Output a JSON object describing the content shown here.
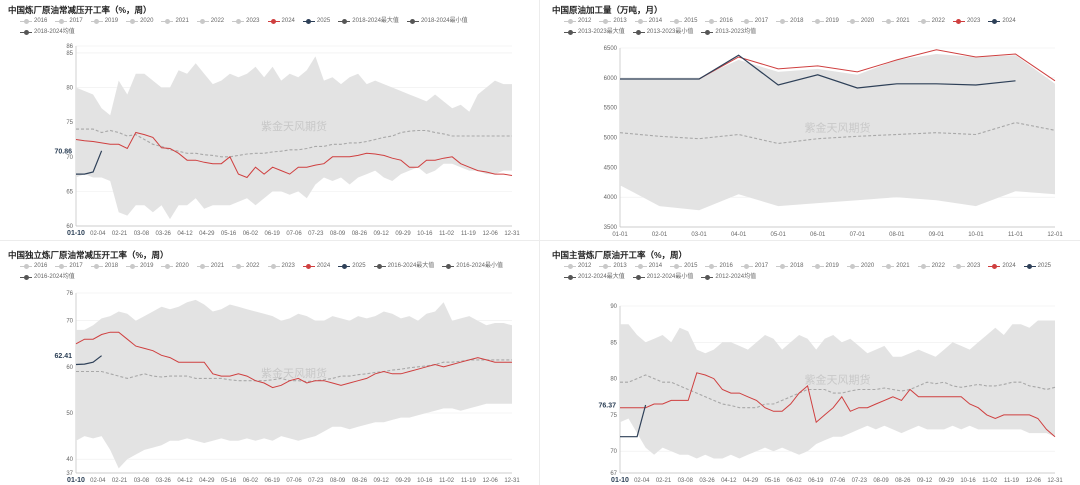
{
  "watermark": "紫金天风期货",
  "colors": {
    "band": "#e3e3e3",
    "avg": "#a8a8a8",
    "red": "#cf3f3f",
    "navy": "#2e4058",
    "gridline": "#eeeeee",
    "legend_gray": "#c9c9c9",
    "legend_dark": "#565656"
  },
  "chart_data": [
    {
      "id": "p1",
      "type": "line",
      "title": "中国炼厂原油常减压开工率（%，周）",
      "legend": [
        {
          "label": "2016",
          "color": "#c9c9c9"
        },
        {
          "label": "2017",
          "color": "#c9c9c9"
        },
        {
          "label": "2019",
          "color": "#c9c9c9"
        },
        {
          "label": "2020",
          "color": "#c9c9c9"
        },
        {
          "label": "2021",
          "color": "#c9c9c9"
        },
        {
          "label": "2022",
          "color": "#c9c9c9"
        },
        {
          "label": "2023",
          "color": "#c9c9c9"
        },
        {
          "label": "2024",
          "color": "#cf3f3f"
        },
        {
          "label": "2025",
          "color": "#2e4058"
        },
        {
          "label": "2018-2024最大值",
          "color": "#565656"
        },
        {
          "label": "2018-2024最小值",
          "color": "#565656"
        },
        {
          "label": "2018-2024均值",
          "color": "#565656"
        }
      ],
      "yticks": [
        "60",
        "65",
        "70",
        "75",
        "80",
        "85",
        "86"
      ],
      "ylim": [
        60,
        86
      ],
      "xticks": [
        "01-10",
        "02-04",
        "02-21",
        "03-08",
        "03-26",
        "04-12",
        "04-29",
        "05-16",
        "06-02",
        "06-19",
        "07-06",
        "07-23",
        "08-09",
        "08-26",
        "09-12",
        "09-29",
        "10-16",
        "11-02",
        "11-19",
        "12-06",
        "12-31"
      ],
      "value_label": "70.86",
      "value_label_y": 70.86,
      "max_series": [
        80,
        79.5,
        79,
        77,
        76,
        81,
        79,
        82,
        82,
        81,
        80,
        80,
        82.5,
        82,
        83.5,
        82,
        80.5,
        81,
        82,
        81.5,
        82,
        83,
        81.5,
        83,
        81,
        82,
        81.5,
        82.5,
        84.5,
        81,
        81.5,
        80.5,
        81.5,
        82,
        80.5,
        81,
        80.5,
        80,
        79.5,
        79,
        78.5,
        78,
        79,
        78,
        77,
        77.5,
        76.5,
        79,
        80,
        81,
        80.5,
        80.5
      ],
      "min_series": [
        67,
        67.5,
        67,
        67,
        66.5,
        62,
        61.5,
        63,
        63,
        62,
        63,
        61,
        63,
        63,
        64,
        62.5,
        63,
        63,
        63,
        63.5,
        64,
        63,
        64,
        65,
        65,
        64.5,
        65,
        64,
        66,
        67,
        66.5,
        67,
        66,
        67,
        67.5,
        68,
        67,
        66.5,
        67.5,
        68,
        68.5,
        67.5,
        68,
        69,
        69,
        68.5,
        68,
        68,
        67.5,
        67.5,
        68,
        68
      ],
      "avg_series": [
        74,
        74,
        74,
        73.5,
        73.8,
        73.5,
        73,
        73.2,
        72.5,
        71.8,
        71.5,
        71,
        70.8,
        70.5,
        70.5,
        70.3,
        70.2,
        70,
        70,
        70.2,
        70.4,
        70.5,
        70.5,
        70.7,
        70.8,
        71,
        71,
        71.2,
        71.5,
        71.5,
        71.8,
        71.8,
        72,
        72,
        72.2,
        72.5,
        72.8,
        73,
        73.5,
        73.7,
        73.8,
        73.8,
        73.5,
        73.3,
        73,
        73,
        73,
        73,
        73,
        73,
        73,
        73
      ],
      "red_series": [
        72.5,
        72.3,
        72.2,
        72,
        71.8,
        71.8,
        71.2,
        73.5,
        73.2,
        72.8,
        71.3,
        71.2,
        70.5,
        69.5,
        69.5,
        69.2,
        69,
        69,
        70,
        67.5,
        67,
        68.5,
        67.5,
        68.5,
        68,
        67.5,
        68.5,
        68.5,
        68.8,
        69,
        70,
        70,
        70,
        70.2,
        70.5,
        70.4,
        70.2,
        69.8,
        69.5,
        68.5,
        68.5,
        69.5,
        69.5,
        69.8,
        70,
        69,
        68.5,
        68,
        67.8,
        67.5,
        67.5,
        67.3
      ],
      "navy_series": [
        67.5,
        67.5,
        67.8,
        70.86
      ]
    },
    {
      "id": "p2",
      "type": "line",
      "title": "中国原油加工量（万吨，月）",
      "legend": [
        {
          "label": "2012",
          "color": "#c9c9c9"
        },
        {
          "label": "2013",
          "color": "#c9c9c9"
        },
        {
          "label": "2014",
          "color": "#c9c9c9"
        },
        {
          "label": "2015",
          "color": "#c9c9c9"
        },
        {
          "label": "2016",
          "color": "#c9c9c9"
        },
        {
          "label": "2017",
          "color": "#c9c9c9"
        },
        {
          "label": "2018",
          "color": "#c9c9c9"
        },
        {
          "label": "2019",
          "color": "#c9c9c9"
        },
        {
          "label": "2020",
          "color": "#c9c9c9"
        },
        {
          "label": "2021",
          "color": "#c9c9c9"
        },
        {
          "label": "2022",
          "color": "#c9c9c9"
        },
        {
          "label": "2023",
          "color": "#cf3f3f"
        },
        {
          "label": "2024",
          "color": "#2e4058"
        },
        {
          "label": "2013-2023最大值",
          "color": "#565656"
        },
        {
          "label": "2013-2023最小值",
          "color": "#565656"
        },
        {
          "label": "2013-2023均值",
          "color": "#565656"
        }
      ],
      "yticks": [
        "3500",
        "4000",
        "4500",
        "5000",
        "5500",
        "6000",
        "6500"
      ],
      "ylim": [
        3500,
        6500
      ],
      "xticks": [
        "01-01",
        "02-01",
        "03-01",
        "04-01",
        "05-01",
        "06-01",
        "07-01",
        "08-01",
        "09-01",
        "10-01",
        "11-01",
        "12-01"
      ],
      "max_series": [
        6000,
        6000,
        6000,
        6300,
        6100,
        6150,
        6050,
        6300,
        6400,
        6350,
        6380,
        5900
      ],
      "min_series": [
        4200,
        3850,
        3780,
        4050,
        3850,
        3900,
        3950,
        4000,
        3950,
        3850,
        4100,
        4050
      ],
      "avg_series": [
        5080,
        5020,
        4980,
        5050,
        4900,
        4980,
        5020,
        5050,
        5080,
        5050,
        5250,
        5120
      ],
      "red_series": [
        5980,
        5980,
        5980,
        6350,
        6150,
        6200,
        6100,
        6300,
        6470,
        6350,
        6400,
        5950
      ],
      "navy_series": [
        5980,
        5980,
        5980,
        6380,
        5880,
        6050,
        5830,
        5900,
        5900,
        5880,
        5950
      ]
    },
    {
      "id": "p3",
      "type": "line",
      "title": "中国独立炼厂原油常减压开工率（%，周）",
      "legend": [
        {
          "label": "2016",
          "color": "#c9c9c9"
        },
        {
          "label": "2017",
          "color": "#c9c9c9"
        },
        {
          "label": "2018",
          "color": "#c9c9c9"
        },
        {
          "label": "2019",
          "color": "#c9c9c9"
        },
        {
          "label": "2020",
          "color": "#c9c9c9"
        },
        {
          "label": "2021",
          "color": "#c9c9c9"
        },
        {
          "label": "2022",
          "color": "#c9c9c9"
        },
        {
          "label": "2023",
          "color": "#c9c9c9"
        },
        {
          "label": "2024",
          "color": "#cf3f3f"
        },
        {
          "label": "2025",
          "color": "#2e4058"
        },
        {
          "label": "2016-2024最大值",
          "color": "#565656"
        },
        {
          "label": "2016-2024最小值",
          "color": "#565656"
        },
        {
          "label": "2016-2024均值",
          "color": "#565656"
        }
      ],
      "yticks": [
        "37",
        "40",
        "50",
        "60",
        "70",
        "76"
      ],
      "ylim": [
        37,
        76
      ],
      "xticks": [
        "01-10",
        "02-04",
        "02-21",
        "03-08",
        "03-26",
        "04-12",
        "04-29",
        "05-16",
        "06-02",
        "06-19",
        "07-06",
        "07-23",
        "08-09",
        "08-26",
        "09-12",
        "09-29",
        "10-16",
        "11-02",
        "11-19",
        "12-06",
        "12-31"
      ],
      "value_label": "62.41",
      "value_label_y": 62.41,
      "max_series": [
        68,
        68,
        69,
        70.5,
        71,
        72,
        71.5,
        70,
        71,
        72,
        73,
        72.5,
        73,
        74,
        74.5,
        73.5,
        72,
        72.5,
        73.5,
        73,
        72.5,
        72,
        71.5,
        71,
        70,
        70.5,
        71.5,
        71,
        70,
        70,
        71,
        70.5,
        70,
        71,
        70.5,
        71,
        72,
        71.5,
        70.5,
        71,
        70,
        71.5,
        72,
        74,
        70,
        70.5,
        71,
        70,
        69,
        69.5,
        69.5,
        69
      ],
      "min_series": [
        44,
        45,
        44.5,
        45,
        42,
        38,
        40,
        41,
        42,
        42.5,
        43,
        44,
        44,
        44.5,
        44,
        43.5,
        44,
        44.5,
        44,
        44,
        44.5,
        44,
        44.5,
        44,
        45,
        44.5,
        44,
        44.5,
        45,
        46,
        47,
        47,
        46.5,
        47,
        47.5,
        48,
        48,
        48.5,
        49,
        49,
        49.5,
        50,
        50.5,
        51,
        51,
        50.5,
        51,
        51.5,
        52,
        52,
        52,
        52
      ],
      "avg_series": [
        59,
        59,
        59,
        59,
        58.5,
        58,
        57.5,
        58,
        58.5,
        58,
        57.8,
        58,
        58,
        58,
        57.5,
        57.5,
        57.5,
        57.5,
        57.2,
        57,
        57,
        57,
        57,
        57.2,
        57.5,
        57,
        57,
        56.8,
        57,
        57.2,
        57.5,
        58,
        58,
        58.3,
        58.5,
        58.8,
        59,
        59.3,
        59.5,
        59.8,
        60,
        60.2,
        60.5,
        61,
        61,
        61.2,
        61.5,
        61.5,
        61.5,
        61.5,
        61.5,
        61.5
      ],
      "red_series": [
        65,
        66,
        66,
        67,
        67.5,
        67.5,
        66,
        64.5,
        64,
        63.5,
        62.5,
        62,
        61,
        61,
        61,
        61,
        58.5,
        58,
        58,
        58.5,
        58,
        57,
        56.5,
        55.5,
        56,
        57,
        57.5,
        56.5,
        57,
        57,
        56.5,
        56,
        56.5,
        57,
        57.5,
        58.5,
        59,
        58.5,
        58.5,
        59,
        59.5,
        60,
        60.5,
        60,
        60.5,
        61,
        61.5,
        62,
        61.5,
        61,
        61,
        61
      ],
      "navy_series": [
        60.5,
        60.6,
        61,
        62.41
      ]
    },
    {
      "id": "p4",
      "type": "line",
      "title": "中国主营炼厂原油开工率（%，周）",
      "legend": [
        {
          "label": "2012",
          "color": "#c9c9c9"
        },
        {
          "label": "2013",
          "color": "#c9c9c9"
        },
        {
          "label": "2014",
          "color": "#c9c9c9"
        },
        {
          "label": "2015",
          "color": "#c9c9c9"
        },
        {
          "label": "2016",
          "color": "#c9c9c9"
        },
        {
          "label": "2017",
          "color": "#c9c9c9"
        },
        {
          "label": "2018",
          "color": "#c9c9c9"
        },
        {
          "label": "2019",
          "color": "#c9c9c9"
        },
        {
          "label": "2020",
          "color": "#c9c9c9"
        },
        {
          "label": "2021",
          "color": "#c9c9c9"
        },
        {
          "label": "2022",
          "color": "#c9c9c9"
        },
        {
          "label": "2023",
          "color": "#c9c9c9"
        },
        {
          "label": "2024",
          "color": "#cf3f3f"
        },
        {
          "label": "2025",
          "color": "#2e4058"
        },
        {
          "label": "2012-2024最大值",
          "color": "#565656"
        },
        {
          "label": "2012-2024最小值",
          "color": "#565656"
        },
        {
          "label": "2012-2024均值",
          "color": "#565656"
        }
      ],
      "yticks": [
        "67",
        "70",
        "75",
        "80",
        "85",
        "90"
      ],
      "ylim": [
        67,
        90
      ],
      "xticks": [
        "01-10",
        "02-04",
        "02-21",
        "03-08",
        "03-26",
        "04-12",
        "04-29",
        "05-16",
        "06-02",
        "06-19",
        "07-06",
        "07-23",
        "08-09",
        "08-26",
        "09-12",
        "09-29",
        "10-16",
        "11-02",
        "11-19",
        "12-06",
        "12-31"
      ],
      "value_label": "76.37",
      "value_label_y": 76.37,
      "max_series": [
        87.5,
        87.5,
        86,
        85,
        85.5,
        86,
        85,
        87,
        86.5,
        84,
        83.5,
        84,
        85,
        85,
        84.5,
        84,
        85,
        86,
        85.5,
        84,
        85,
        86,
        85.5,
        84,
        85.5,
        86,
        85,
        85.5,
        84.5,
        83.5,
        84,
        84.5,
        83,
        83,
        83.5,
        84,
        83.5,
        83,
        84,
        85,
        84.5,
        84,
        85,
        86,
        87,
        86,
        87.5,
        87.5,
        87,
        88,
        88,
        88
      ],
      "min_series": [
        74,
        74.5,
        72.5,
        70.5,
        69.5,
        70.5,
        70,
        69.5,
        69.5,
        69,
        69.5,
        69,
        69,
        69.5,
        69,
        69.5,
        70,
        70.5,
        70,
        70.5,
        70,
        69.5,
        70,
        71,
        71.5,
        72,
        72,
        72.5,
        73,
        73.5,
        73,
        73.5,
        73,
        72.5,
        73,
        73.5,
        73,
        73,
        73,
        73.5,
        73,
        73.5,
        73,
        73,
        73,
        73,
        73,
        73,
        72.5,
        72.5,
        72.5,
        72
      ],
      "avg_series": [
        79.5,
        79.5,
        80,
        80.5,
        80,
        79.5,
        79.5,
        79,
        78.5,
        78,
        77.5,
        77,
        76.5,
        76.3,
        76,
        76,
        76,
        76.5,
        76.5,
        77,
        77.5,
        78,
        78.5,
        78.5,
        78.5,
        78,
        78,
        78.3,
        78.5,
        78.5,
        78.5,
        78.7,
        78.5,
        78.3,
        78.5,
        79,
        79.5,
        79.3,
        79.5,
        79,
        78.8,
        79,
        79.2,
        79,
        79,
        79.2,
        79.5,
        79.5,
        79,
        78.8,
        78.5,
        78.8
      ],
      "red_series": [
        76,
        76,
        76,
        76,
        76.5,
        76.5,
        77,
        77,
        77,
        80.8,
        80.5,
        80,
        78.5,
        78,
        78,
        77.5,
        77,
        76,
        75.5,
        75.5,
        76.5,
        78,
        79,
        74,
        75,
        76,
        77.5,
        75.5,
        76,
        76,
        76.5,
        77,
        77.5,
        77,
        78.5,
        77.5,
        77.5,
        77.5,
        77.5,
        77.5,
        77.5,
        76.5,
        76,
        75,
        74.5,
        75,
        75,
        75,
        75,
        74.5,
        73,
        72
      ],
      "navy_series": [
        72,
        72,
        72,
        76.37
      ]
    }
  ]
}
